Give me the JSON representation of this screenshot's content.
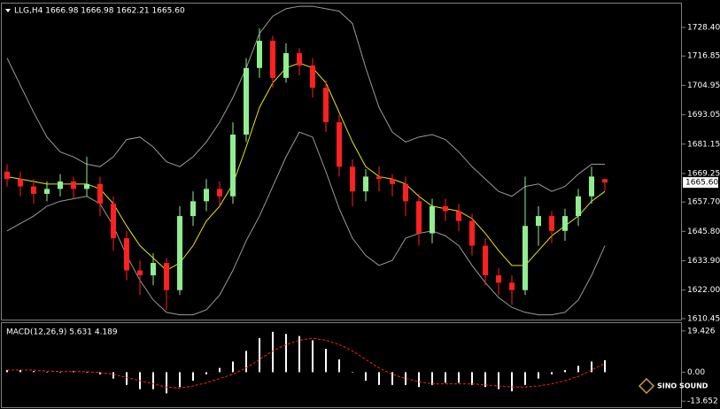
{
  "chart_data": [
    {
      "type": "candlestick",
      "title": "LLG,H4 1666.98 1666.98 1662.21 1665.60",
      "up_color": "#90ee90",
      "down_color": "#ff2020",
      "open": [
        1670,
        1667,
        1664,
        1661,
        1663,
        1666,
        1663,
        1665,
        1657,
        1643,
        1630,
        1628,
        1633,
        1622,
        1652,
        1658,
        1663,
        1660,
        1685,
        1712,
        1723,
        1708,
        1718,
        1713,
        1704,
        1690,
        1672,
        1662,
        1668,
        1667,
        1665,
        1658,
        1645,
        1656,
        1654,
        1650,
        1640,
        1628,
        1625,
        1622,
        1648,
        1652,
        1646,
        1652,
        1660,
        1666.98
      ],
      "high": [
        1673,
        1670,
        1667,
        1666,
        1669,
        1668,
        1676,
        1668,
        1660,
        1646,
        1634,
        1637,
        1635,
        1656,
        1662,
        1667,
        1666,
        1690,
        1716,
        1728,
        1725,
        1722,
        1720,
        1716,
        1707,
        1693,
        1675,
        1671,
        1672,
        1669,
        1668,
        1661,
        1659,
        1659,
        1657,
        1653,
        1643,
        1631,
        1628,
        1668,
        1656,
        1654,
        1655,
        1663,
        1672,
        1666.98
      ],
      "low": [
        1664,
        1660,
        1657,
        1658,
        1660,
        1659,
        1660,
        1652,
        1638,
        1626,
        1620,
        1624,
        1614,
        1620,
        1648,
        1654,
        1656,
        1657,
        1682,
        1708,
        1704,
        1706,
        1709,
        1700,
        1686,
        1668,
        1656,
        1658,
        1662,
        1660,
        1652,
        1640,
        1641,
        1650,
        1646,
        1636,
        1624,
        1620,
        1616,
        1620,
        1640,
        1641,
        1642,
        1648,
        1657,
        1662.21
      ],
      "close": [
        1667,
        1664,
        1661,
        1663,
        1666,
        1663,
        1665,
        1657,
        1643,
        1630,
        1628,
        1633,
        1622,
        1652,
        1658,
        1663,
        1660,
        1685,
        1712,
        1723,
        1708,
        1718,
        1713,
        1704,
        1690,
        1672,
        1662,
        1668,
        1667,
        1665,
        1658,
        1645,
        1656,
        1654,
        1650,
        1640,
        1628,
        1625,
        1622,
        1648,
        1652,
        1646,
        1652,
        1660,
        1668,
        1665.6
      ],
      "overlays": [
        {
          "color": "#9a9a9a",
          "values": [
            1716,
            1705,
            1694,
            1684,
            1678,
            1676,
            1673,
            1672,
            1676,
            1683,
            1684,
            1680,
            1674,
            1672,
            1676,
            1682,
            1690,
            1700,
            1712,
            1726,
            1733,
            1736,
            1737,
            1737,
            1736,
            1735,
            1730,
            1712,
            1696,
            1686,
            1682,
            1684,
            1685,
            1683,
            1678,
            1672,
            1667,
            1662,
            1660,
            1664,
            1665,
            1662,
            1664,
            1669,
            1673,
            1673
          ]
        },
        {
          "color": "#9a9a9a",
          "values": [
            1646,
            1649,
            1652,
            1656,
            1658,
            1659,
            1660,
            1657,
            1648,
            1636,
            1626,
            1618,
            1613,
            1612,
            1612,
            1614,
            1620,
            1630,
            1642,
            1652,
            1664,
            1676,
            1686,
            1684,
            1670,
            1655,
            1643,
            1636,
            1632,
            1634,
            1643,
            1645,
            1646,
            1644,
            1640,
            1632,
            1625,
            1619,
            1615,
            1613,
            1612,
            1612,
            1613,
            1618,
            1628,
            1640
          ]
        },
        {
          "color": "#e8e800",
          "values": [
            1668,
            1667,
            1666,
            1665,
            1665,
            1665,
            1665,
            1663,
            1657,
            1648,
            1640,
            1635,
            1630,
            1633,
            1640,
            1650,
            1656,
            1665,
            1680,
            1696,
            1706,
            1712,
            1714,
            1712,
            1706,
            1694,
            1682,
            1672,
            1668,
            1667,
            1665,
            1660,
            1656,
            1655,
            1654,
            1651,
            1645,
            1638,
            1632,
            1632,
            1638,
            1644,
            1648,
            1652,
            1658,
            1662
          ]
        }
      ],
      "last_price": {
        "value": 1665.6,
        "label": "1665.60"
      },
      "ylim": [
        1609.7,
        1738.1
      ],
      "yticks": [
        {
          "value": 1728.4,
          "label": "1728.40"
        },
        1716.85,
        1704.95,
        1693.05,
        1681.15,
        {
          "value": 1669.25,
          "label": "1669.25"
        },
        {
          "value": 1657.7,
          "label": "1657.70"
        },
        {
          "value": 1645.8,
          "label": "1645.80"
        },
        {
          "value": 1633.9,
          "label": "1633.90"
        },
        {
          "value": 1622.0,
          "label": "1622.00"
        },
        1610.45
      ]
    },
    {
      "type": "macd",
      "title": "MACD(12,26,9) 5.631 4.189",
      "color": "#ffffff",
      "signal_color": "#ff2020",
      "values": [
        1,
        1,
        0.5,
        0,
        0,
        0.5,
        0,
        -1,
        -3,
        -6,
        -8,
        -8,
        -10,
        -7,
        -4,
        -1,
        2,
        5,
        10,
        16,
        19,
        18,
        17,
        15,
        11,
        6,
        0,
        -4,
        -6,
        -6,
        -6,
        -7,
        -6,
        -5,
        -5,
        -6,
        -7,
        -8,
        -9,
        -6,
        -3,
        -1,
        1,
        3,
        5,
        5.631
      ],
      "signal": [
        1,
        1,
        1,
        0.5,
        0.3,
        0.3,
        0.2,
        -0.2,
        -1,
        -2.5,
        -4,
        -5.5,
        -7,
        -7.5,
        -6.5,
        -5,
        -3,
        -1,
        2,
        6,
        10,
        13,
        15,
        16,
        15,
        13,
        10,
        6,
        2,
        -1,
        -3,
        -4.5,
        -5.5,
        -5.5,
        -5.5,
        -5.5,
        -6,
        -6.5,
        -7,
        -7,
        -6.5,
        -5.5,
        -4,
        -2,
        1,
        4.189
      ],
      "ylim": [
        -16.5,
        23.1
      ],
      "yticks": [
        19.426,
        {
          "value": 0,
          "label": "0.00"
        },
        -13.652
      ],
      "watermark": "SINO SOUND"
    }
  ]
}
